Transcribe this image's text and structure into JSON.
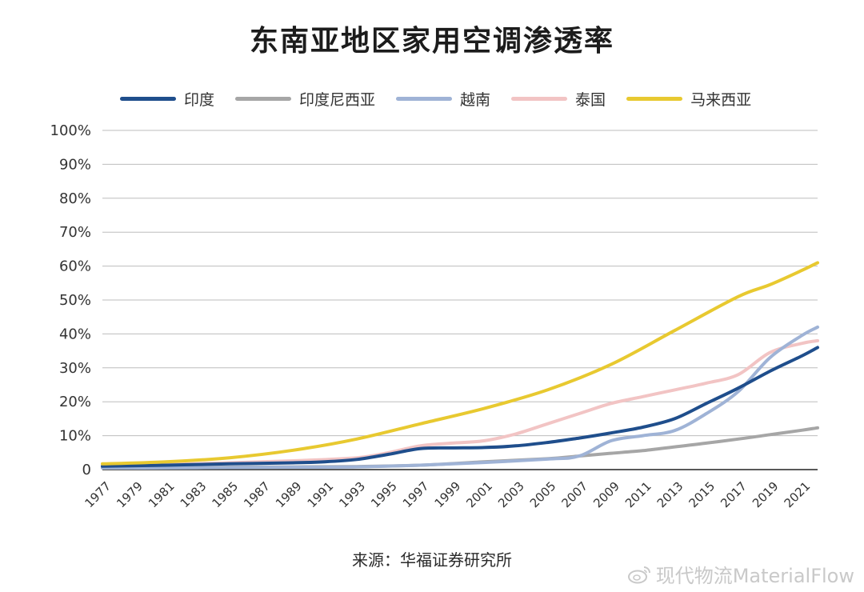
{
  "title": "东南亚地区家用空调渗透率",
  "source": "来源：华福证券研究所",
  "watermark": "现代物流MaterialFlow",
  "chart_data": {
    "type": "line",
    "title": "东南亚地区家用空调渗透率",
    "xlabel": "",
    "ylabel": "",
    "ylim": [
      0,
      100
    ],
    "xlim": [
      1977,
      2022
    ],
    "grid": true,
    "legend_position": "top",
    "y_tick_labels": [
      "0",
      "10%",
      "20%",
      "30%",
      "40%",
      "50%",
      "60%",
      "70%",
      "80%",
      "90%",
      "100%"
    ],
    "x_tick_labels": [
      "1977",
      "1979",
      "1981",
      "1983",
      "1985",
      "1987",
      "1989",
      "1991",
      "1993",
      "1995",
      "1997",
      "1999",
      "2001",
      "2003",
      "2005",
      "2007",
      "2009",
      "2011",
      "2013",
      "2015",
      "2017",
      "2019",
      "2021"
    ],
    "series": [
      {
        "name": "印度",
        "color": "#1f4e8c",
        "points": [
          [
            1977,
            1
          ],
          [
            1981,
            1.3
          ],
          [
            1985,
            1.7
          ],
          [
            1989,
            2
          ],
          [
            1991,
            2.3
          ],
          [
            1993,
            3
          ],
          [
            1995,
            4.5
          ],
          [
            1997,
            6.2
          ],
          [
            1999,
            6.4
          ],
          [
            2001,
            6.5
          ],
          [
            2003,
            7
          ],
          [
            2005,
            8
          ],
          [
            2007,
            9.3
          ],
          [
            2009,
            10.8
          ],
          [
            2011,
            12.5
          ],
          [
            2013,
            15
          ],
          [
            2015,
            19.5
          ],
          [
            2017,
            24
          ],
          [
            2019,
            29
          ],
          [
            2021,
            33.5
          ],
          [
            2022,
            36
          ]
        ]
      },
      {
        "name": "印度尼西亚",
        "color": "#a6a6a6",
        "points": [
          [
            1977,
            0.5
          ],
          [
            1981,
            0.6
          ],
          [
            1985,
            0.7
          ],
          [
            1989,
            0.8
          ],
          [
            1993,
            0.9
          ],
          [
            1997,
            1.3
          ],
          [
            2001,
            2.3
          ],
          [
            2005,
            3.2
          ],
          [
            2007,
            4
          ],
          [
            2009,
            4.8
          ],
          [
            2011,
            5.6
          ],
          [
            2013,
            6.7
          ],
          [
            2015,
            7.8
          ],
          [
            2017,
            9
          ],
          [
            2019,
            10.3
          ],
          [
            2021,
            11.6
          ],
          [
            2022,
            12.3
          ]
        ]
      },
      {
        "name": "越南",
        "color": "#9fb3d6",
        "points": [
          [
            1977,
            0.5
          ],
          [
            1981,
            0.5
          ],
          [
            1985,
            0.6
          ],
          [
            1989,
            0.7
          ],
          [
            1993,
            0.8
          ],
          [
            1997,
            1.3
          ],
          [
            2001,
            2.1
          ],
          [
            2005,
            3.1
          ],
          [
            2007,
            4
          ],
          [
            2009,
            8.5
          ],
          [
            2011,
            10
          ],
          [
            2013,
            11.5
          ],
          [
            2015,
            16.5
          ],
          [
            2017,
            23
          ],
          [
            2019,
            33
          ],
          [
            2021,
            39.5
          ],
          [
            2022,
            42
          ]
        ]
      },
      {
        "name": "泰国",
        "color": "#f2c4c4",
        "points": [
          [
            1977,
            1
          ],
          [
            1981,
            1.5
          ],
          [
            1985,
            2
          ],
          [
            1989,
            2.6
          ],
          [
            1993,
            3.5
          ],
          [
            1995,
            5
          ],
          [
            1997,
            7
          ],
          [
            1999,
            7.8
          ],
          [
            2001,
            8.5
          ],
          [
            2003,
            10.5
          ],
          [
            2005,
            13.5
          ],
          [
            2007,
            16.5
          ],
          [
            2009,
            19.5
          ],
          [
            2011,
            21.5
          ],
          [
            2013,
            23.5
          ],
          [
            2015,
            25.5
          ],
          [
            2017,
            28
          ],
          [
            2019,
            34.5
          ],
          [
            2021,
            37.2
          ],
          [
            2022,
            38
          ]
        ]
      },
      {
        "name": "马来西亚",
        "color": "#e8c930",
        "points": [
          [
            1977,
            1.7
          ],
          [
            1981,
            2.3
          ],
          [
            1985,
            3.5
          ],
          [
            1989,
            5.7
          ],
          [
            1993,
            9
          ],
          [
            1997,
            13.5
          ],
          [
            2001,
            18
          ],
          [
            2005,
            23.5
          ],
          [
            2009,
            31
          ],
          [
            2013,
            41
          ],
          [
            2017,
            51
          ],
          [
            2019,
            54.5
          ],
          [
            2021,
            58.7
          ],
          [
            2022,
            61
          ]
        ]
      }
    ]
  }
}
